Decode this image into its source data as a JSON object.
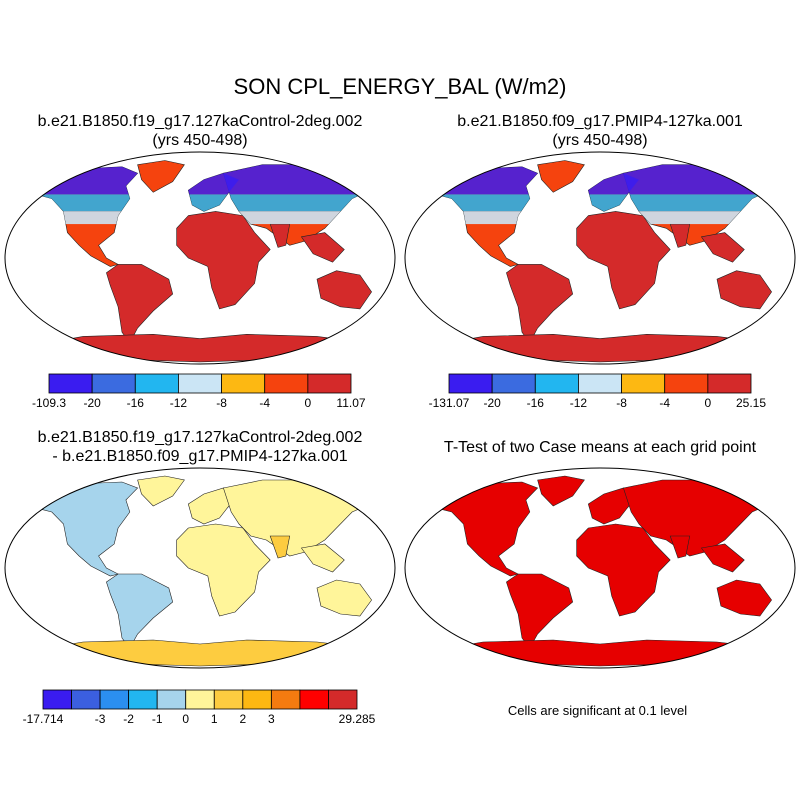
{
  "title": "SON CPL_ENERGY_BAL (W/m2)",
  "panels": {
    "top_left": {
      "title_line1": "b.e21.B1850.f19_g17.127kaControl-2deg.002",
      "title_line2": "(yrs 450-498)",
      "colorbar": {
        "colors": [
          "#3a1cf0",
          "#3b6be0",
          "#22b6f0",
          "#cbe5f5",
          "#fdb812",
          "#f5430e",
          "#d42a2a"
        ],
        "labels": [
          "-109.3",
          "-20",
          "-16",
          "-12",
          "-8",
          "-4",
          "0",
          "11.07"
        ]
      }
    },
    "top_right": {
      "title_line1": "b.e21.B1850.f09_g17.PMIP4-127ka.001",
      "title_line2": "(yrs 450-498)",
      "colorbar": {
        "colors": [
          "#3a1cf0",
          "#3b6be0",
          "#22b6f0",
          "#cbe5f5",
          "#fdb812",
          "#f5430e",
          "#d42a2a"
        ],
        "labels": [
          "-131.07",
          "-20",
          "-16",
          "-12",
          "-8",
          "-4",
          "0",
          "25.15"
        ]
      }
    },
    "bottom_left": {
      "title_line1": "b.e21.B1850.f19_g17.127kaControl-2deg.002",
      "title_line2": "- b.e21.B1850.f09_g17.PMIP4-127ka.001",
      "colorbar": {
        "colors": [
          "#3a1cf0",
          "#3b5fe0",
          "#2b8ff0",
          "#22b6f0",
          "#a6d4ec",
          "#fff59a",
          "#fdcc40",
          "#fdb812",
          "#f57b10",
          "#ff0000",
          "#d42a2a"
        ],
        "labels": [
          "-17.714",
          "",
          "-3",
          "-2",
          "-1",
          "0",
          "1",
          "2",
          "3",
          "",
          "",
          "29.285"
        ]
      }
    },
    "bottom_right": {
      "title_line1": "T-Test of two Case means at each grid point",
      "note": "Cells are significant at 0.1 level",
      "sig_color": "#e60000"
    }
  }
}
